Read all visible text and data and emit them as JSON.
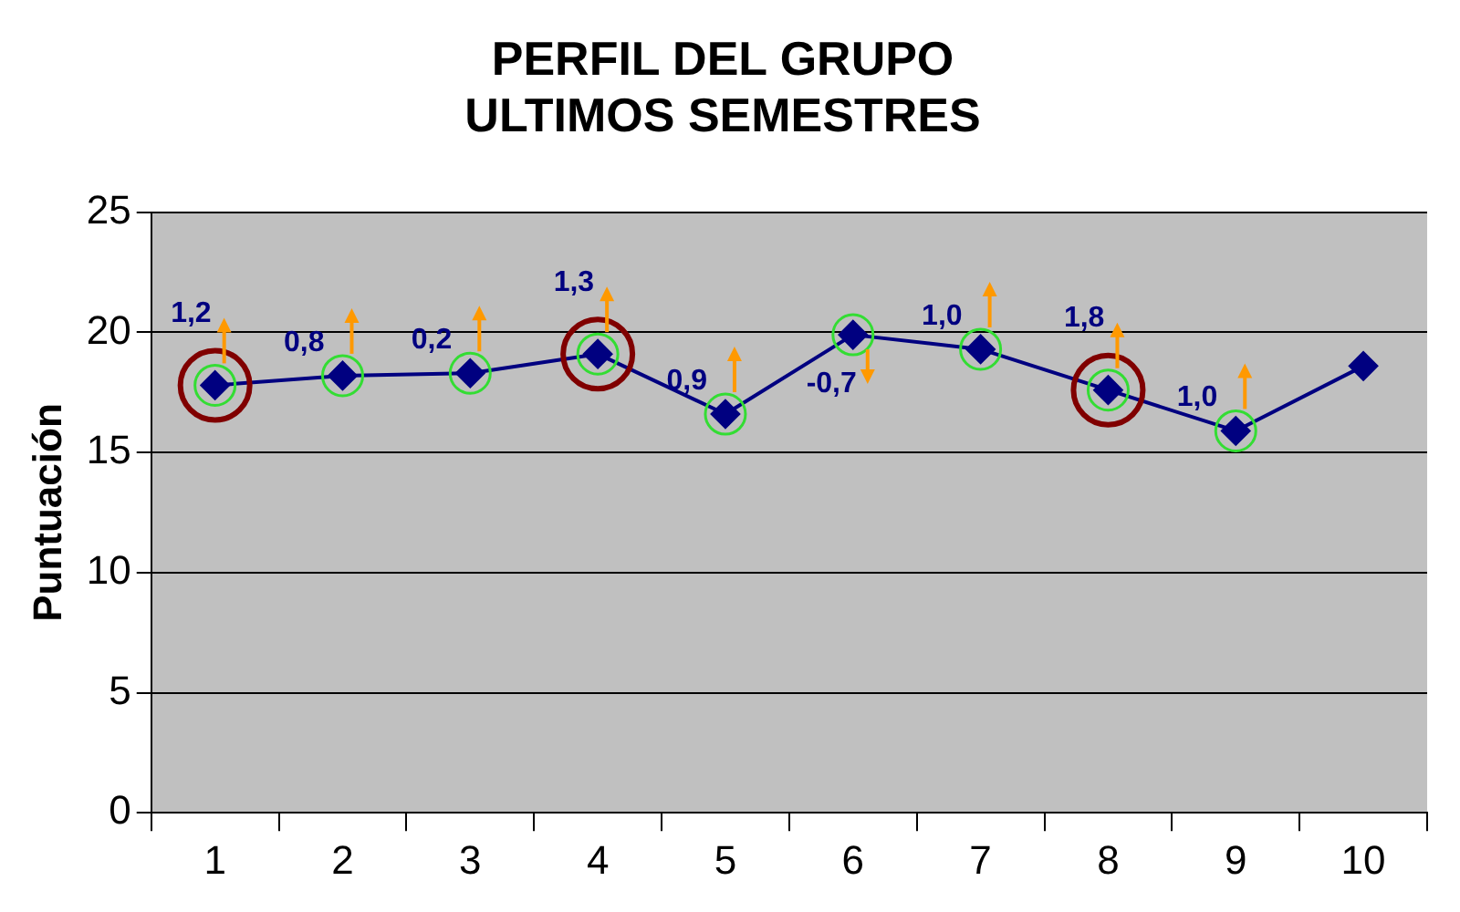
{
  "chart_data": {
    "type": "line",
    "title": "PERFIL DEL GRUPO\nULTIMOS SEMESTRES",
    "ylabel": "Puntuación",
    "categories": [
      "1",
      "2",
      "3",
      "4",
      "5",
      "6",
      "7",
      "8",
      "9",
      "10"
    ],
    "series": [
      {
        "color": "#000080",
        "values": [
          17.8,
          18.2,
          18.3,
          19.1,
          16.6,
          19.9,
          19.3,
          17.6,
          15.9,
          18.6
        ]
      }
    ],
    "ylim": [
      0,
      25
    ],
    "yticks": [
      0,
      5,
      10,
      15,
      20,
      25
    ],
    "grid": "y",
    "legend": false,
    "marker": "diamond",
    "line_style": "solid",
    "annotations": [
      {
        "text": "1,2",
        "x": "1",
        "y": 17.8
      },
      {
        "text": "0,8",
        "x": "2",
        "y": 18.2
      },
      {
        "text": "0,2",
        "x": "3",
        "y": 18.3
      },
      {
        "text": "1,3",
        "x": "4",
        "y": 19.1
      },
      {
        "text": "0,9",
        "x": "5",
        "y": 16.6
      },
      {
        "text": "-0,7",
        "x": "6",
        "y": 19.9
      },
      {
        "text": "1,0",
        "x": "7",
        "y": 19.3
      },
      {
        "text": "1,8",
        "x": "8",
        "y": 17.6
      },
      {
        "text": "1,0",
        "x": "9",
        "y": 15.9
      }
    ]
  }
}
